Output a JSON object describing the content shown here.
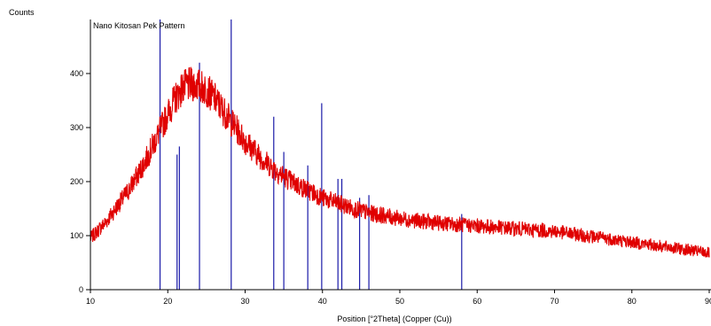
{
  "chart_data": {
    "type": "line",
    "ylabel": "Counts",
    "xlabel": "Position [°2Theta] (Copper (Cu))",
    "legend": "Nano Kitosan Pek Pattern",
    "xlim": [
      10,
      90
    ],
    "ylim": [
      0,
      500
    ],
    "xticks": [
      10,
      20,
      30,
      40,
      50,
      60,
      70,
      80,
      90
    ],
    "yticks": [
      0,
      100,
      200,
      300,
      400
    ],
    "series": [
      {
        "color": "#e00000",
        "x": [
          10,
          11,
          12,
          13,
          14,
          15,
          16,
          17,
          18,
          19,
          20,
          21,
          22,
          23,
          24,
          25,
          26,
          27,
          28,
          29,
          30,
          31,
          32,
          33,
          34,
          35,
          36,
          37,
          38,
          39,
          40,
          41,
          42,
          43,
          44,
          45,
          46,
          47,
          48,
          49,
          50,
          52,
          54,
          56,
          58,
          60,
          62,
          64,
          66,
          68,
          70,
          72,
          74,
          76,
          78,
          80,
          82,
          84,
          86,
          88,
          90
        ],
        "y": [
          95,
          110,
          125,
          145,
          165,
          185,
          210,
          235,
          265,
          295,
          325,
          355,
          375,
          380,
          378,
          370,
          355,
          335,
          315,
          295,
          275,
          260,
          245,
          232,
          220,
          210,
          200,
          192,
          185,
          178,
          170,
          165,
          160,
          155,
          150,
          146,
          142,
          139,
          137,
          134,
          132,
          128,
          125,
          122,
          120,
          118,
          116,
          114,
          112,
          110,
          108,
          104,
          100,
          96,
          92,
          88,
          84,
          80,
          76,
          72,
          68
        ]
      }
    ],
    "reference_peaks": {
      "color": "#1a1aa8",
      "x": [
        19.0,
        21.2,
        21.5,
        24.1,
        28.2,
        33.7,
        35.0,
        38.1,
        39.9,
        42.0,
        42.5,
        44.8,
        46.0,
        58.0
      ],
      "y": [
        500,
        250,
        265,
        420,
        500,
        320,
        255,
        230,
        345,
        205,
        205,
        170,
        175,
        140
      ]
    }
  }
}
